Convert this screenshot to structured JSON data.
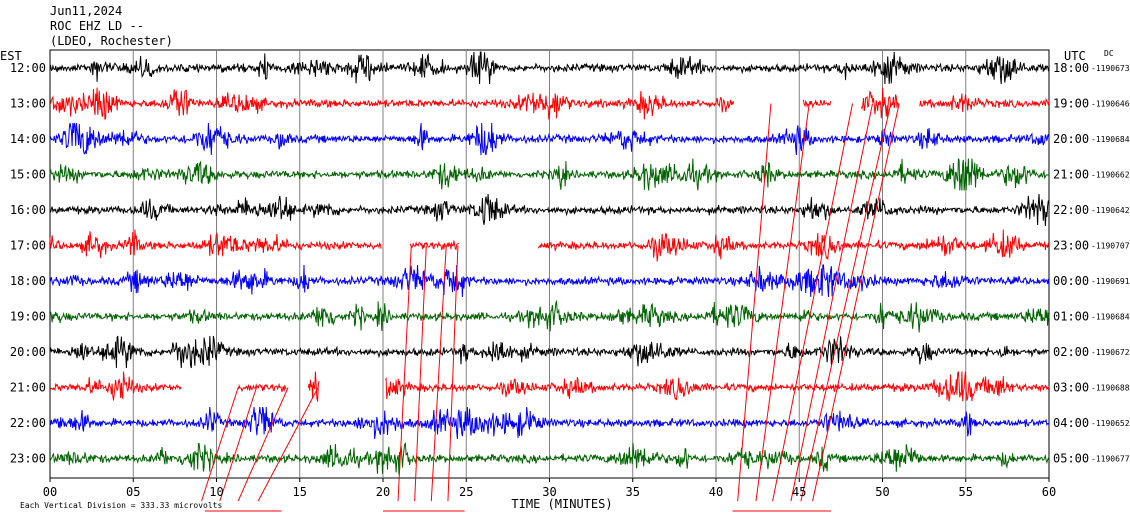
{
  "header": {
    "date": "Jun11,2024",
    "station": "ROC EHZ LD --",
    "network": "(LDEO, Rochester)"
  },
  "chart_data": {
    "type": "line",
    "left_axis_label": "EST",
    "right_axis_label": "UTC",
    "dc_label": "DC",
    "xlabel": "TIME (MINUTES)",
    "xlim": [
      0,
      60
    ],
    "x_ticks": [
      "00",
      "05",
      "10",
      "15",
      "20",
      "25",
      "30",
      "35",
      "40",
      "45",
      "50",
      "55",
      "60"
    ],
    "footer_note": "Each Vertical Division =  333.33 microvolts",
    "trace_colors": [
      "#000000",
      "#ff0000",
      "#0000ff",
      "#006400"
    ],
    "rows": [
      {
        "est": "12:00",
        "utc": "18:00",
        "dc": "-1190673"
      },
      {
        "est": "13:00",
        "utc": "19:00",
        "dc": "-1190646"
      },
      {
        "est": "14:00",
        "utc": "20:00",
        "dc": "-1190684"
      },
      {
        "est": "15:00",
        "utc": "21:00",
        "dc": "-1190662"
      },
      {
        "est": "16:00",
        "utc": "22:00",
        "dc": "-1190642"
      },
      {
        "est": "17:00",
        "utc": "23:00",
        "dc": "-1190707"
      },
      {
        "est": "18:00",
        "utc": "00:00",
        "dc": "-1190691"
      },
      {
        "est": "19:00",
        "utc": "01:00",
        "dc": "-1190684"
      },
      {
        "est": "20:00",
        "utc": "02:00",
        "dc": "-1190672"
      },
      {
        "est": "21:00",
        "utc": "03:00",
        "dc": "-1190688"
      },
      {
        "est": "22:00",
        "utc": "04:00",
        "dc": "-1190652"
      },
      {
        "est": "23:00",
        "utc": "05:00",
        "dc": "-1190677"
      }
    ],
    "gaps": [
      {
        "row": 1,
        "from": 41.1,
        "to": 45.2
      },
      {
        "row": 1,
        "from": 46.9,
        "to": 48.7
      },
      {
        "row": 1,
        "from": 51.0,
        "to": 52.2
      },
      {
        "row": 5,
        "from": 19.9,
        "to": 21.6
      },
      {
        "row": 5,
        "from": 24.6,
        "to": 29.3
      },
      {
        "row": 9,
        "from": 7.9,
        "to": 11.3
      },
      {
        "row": 9,
        "from": 14.2,
        "to": 15.5
      },
      {
        "row": 9,
        "from": 16.2,
        "to": 20.1
      }
    ]
  }
}
